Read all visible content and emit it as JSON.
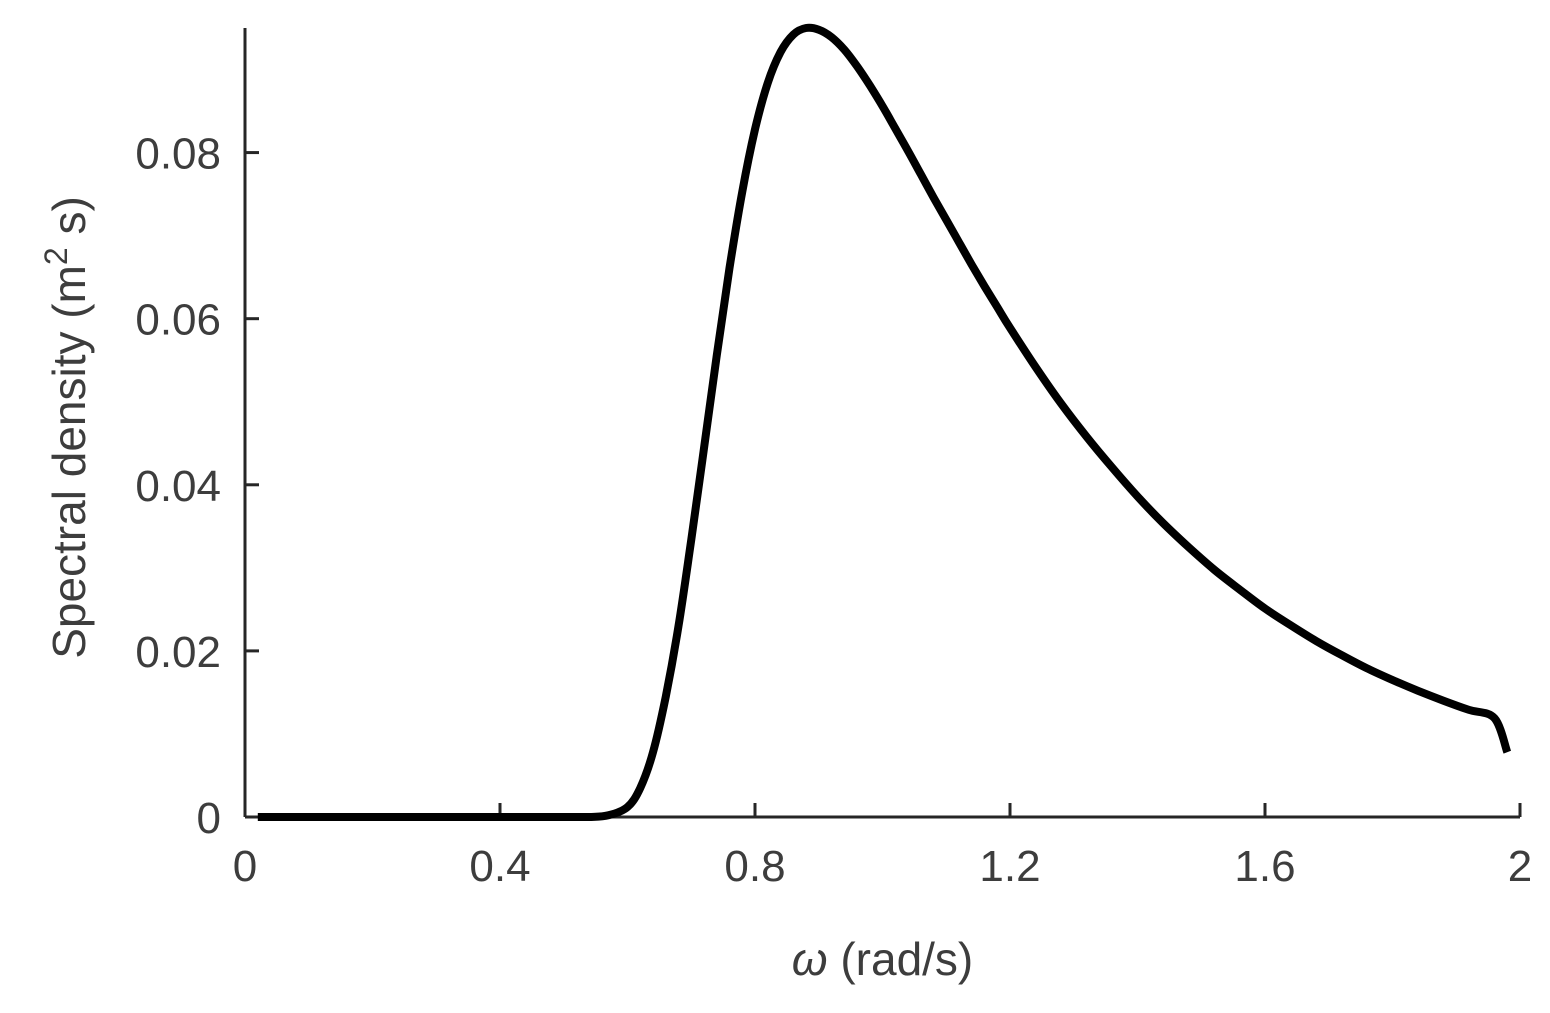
{
  "chart_data": {
    "type": "line",
    "title": "",
    "xlabel": "ω (rad/s)",
    "xlabel_symbol": "ω",
    "xlabel_rest": " (rad/s)",
    "ylabel": "Spectral density (m² s)",
    "ylabel_main": "Spectral density (m",
    "ylabel_sup": "2",
    "ylabel_end": " s)",
    "xlim": [
      0,
      2
    ],
    "ylim": [
      0,
      0.095
    ],
    "x_ticks": [
      0,
      0.4,
      0.8,
      1.2,
      1.6,
      2
    ],
    "x_tick_labels": [
      "0",
      "0.4",
      "0.8",
      "1.2",
      "1.6",
      "2"
    ],
    "y_ticks": [
      0,
      0.02,
      0.04,
      0.06,
      0.08
    ],
    "y_tick_labels": [
      "0",
      "0.02",
      "0.04",
      "0.06",
      "0.08"
    ],
    "grid": false,
    "legend": "none",
    "colors": {
      "line": "#000000",
      "axis": "#262626",
      "text": "#3d3d3d"
    },
    "series": [
      {
        "x": [
          0.02,
          0.1,
          0.2,
          0.3,
          0.4,
          0.5,
          0.54,
          0.57,
          0.6,
          0.62,
          0.64,
          0.66,
          0.68,
          0.7,
          0.72,
          0.74,
          0.76,
          0.78,
          0.8,
          0.82,
          0.84,
          0.86,
          0.88,
          0.9,
          0.92,
          0.94,
          0.96,
          0.98,
          1.0,
          1.02,
          1.04,
          1.06,
          1.08,
          1.1,
          1.12,
          1.14,
          1.16,
          1.18,
          1.2,
          1.24,
          1.28,
          1.32,
          1.36,
          1.4,
          1.44,
          1.48,
          1.52,
          1.56,
          1.6,
          1.64,
          1.68,
          1.72,
          1.76,
          1.8,
          1.84,
          1.88,
          1.92,
          1.96,
          1.98
        ],
        "y": [
          0,
          0,
          0,
          0,
          0,
          0,
          0,
          0.0002,
          0.0012,
          0.0035,
          0.0078,
          0.0145,
          0.023,
          0.0334,
          0.0444,
          0.0556,
          0.0661,
          0.0753,
          0.0828,
          0.0884,
          0.0921,
          0.0942,
          0.095,
          0.0948,
          0.0939,
          0.0924,
          0.0904,
          0.0881,
          0.0856,
          0.0829,
          0.0802,
          0.0774,
          0.0746,
          0.0719,
          0.0692,
          0.0665,
          0.0639,
          0.0614,
          0.0589,
          0.0542,
          0.0498,
          0.0458,
          0.0421,
          0.0386,
          0.0354,
          0.0325,
          0.0298,
          0.0274,
          0.0251,
          0.0231,
          0.0212,
          0.0195,
          0.0179,
          0.0165,
          0.0152,
          0.014,
          0.0129,
          0.0119,
          0.0078
        ]
      }
    ]
  }
}
